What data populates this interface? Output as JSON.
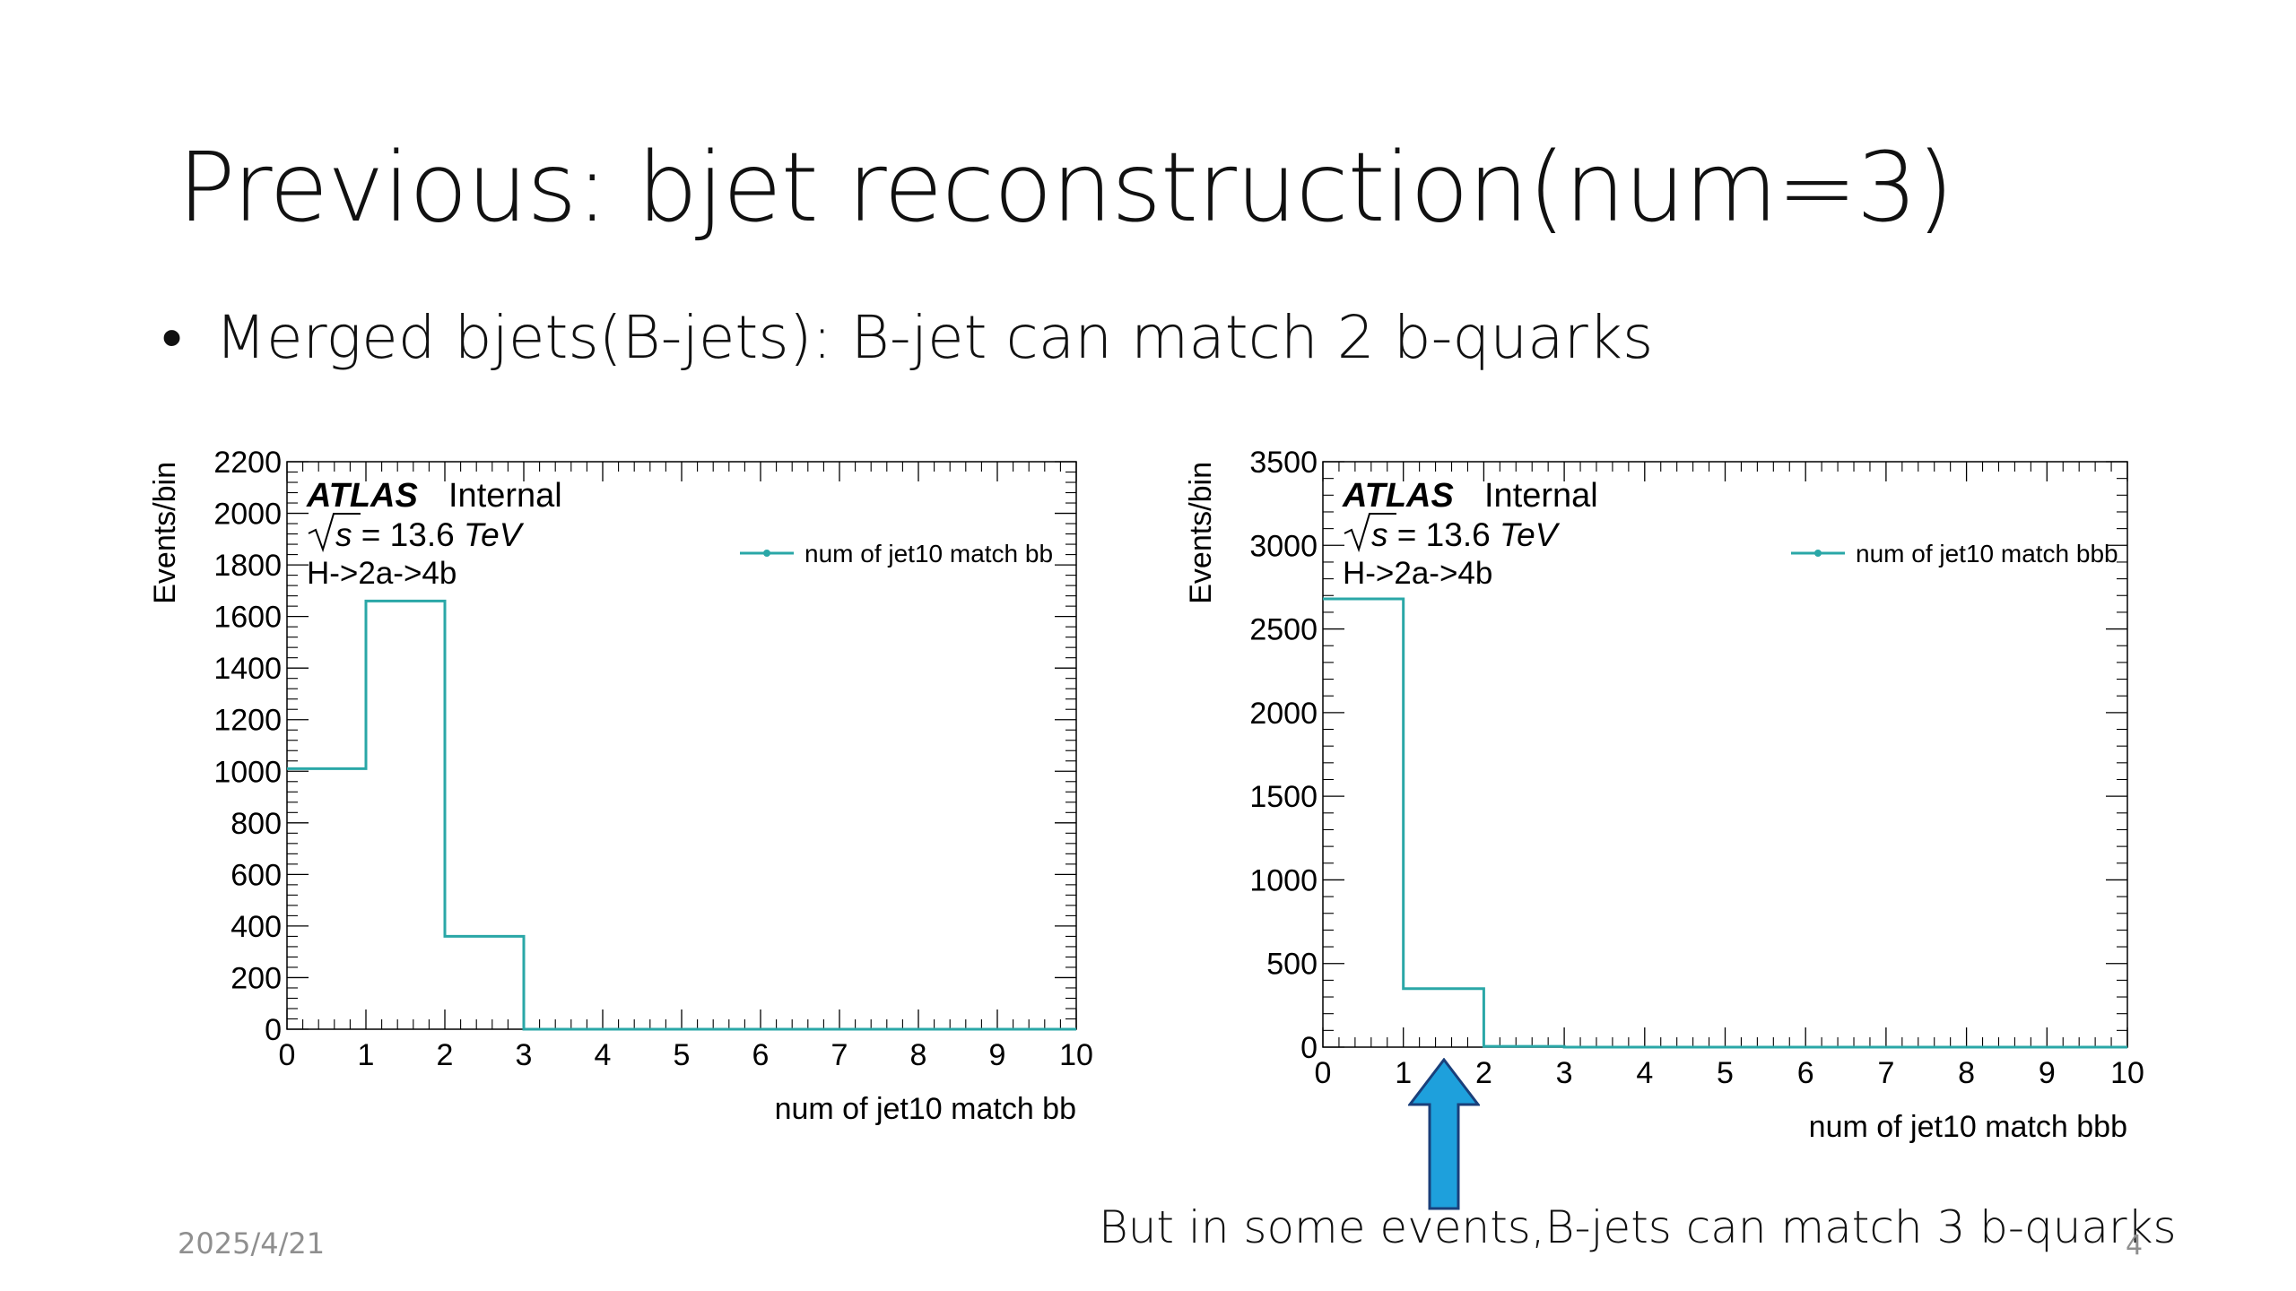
{
  "slide": {
    "title": "Previous: bjet reconstruction(num=3)",
    "bullet": "Merged bjets(B-jets): B-jet can match 2 b-quarks",
    "annotation": "But in some events,B-jets can match 3 b-quarks",
    "date": "2025/4/21",
    "page_number": "4"
  },
  "colors": {
    "series": "#2aa7a7",
    "arrow_fill": "#1ea0dc",
    "arrow_stroke": "#1a3f7a"
  },
  "chart_data": [
    {
      "type": "histogram",
      "xlabel": "num of jet10 match bb",
      "ylabel": "Events/bin",
      "xlim": [
        0,
        10
      ],
      "ylim": [
        0,
        2200
      ],
      "xticks": [
        0,
        1,
        2,
        3,
        4,
        5,
        6,
        7,
        8,
        9,
        10
      ],
      "yticks": [
        0,
        200,
        400,
        600,
        800,
        1000,
        1200,
        1400,
        1600,
        1800,
        2000,
        2200
      ],
      "bin_edges": [
        0,
        1,
        2,
        3,
        4,
        5,
        6,
        7,
        8,
        9,
        10
      ],
      "values": [
        1010,
        1660,
        360,
        0,
        0,
        0,
        0,
        0,
        0,
        0
      ],
      "legend": {
        "label": "num of jet10 match bb",
        "position": "top-right"
      },
      "labels": {
        "atlas": "ATLAS",
        "internal": "Internal",
        "energy_prefix": "s = 13.6",
        "energy_unit": "TeV",
        "process": "H->2a->4b"
      }
    },
    {
      "type": "histogram",
      "xlabel": "num of jet10 match bbb",
      "ylabel": "Events/bin",
      "xlim": [
        0,
        10
      ],
      "ylim": [
        0,
        3500
      ],
      "xticks": [
        0,
        1,
        2,
        3,
        4,
        5,
        6,
        7,
        8,
        9,
        10
      ],
      "yticks": [
        0,
        500,
        1000,
        1500,
        2000,
        2500,
        3000,
        3500
      ],
      "bin_edges": [
        0,
        1,
        2,
        3,
        4,
        5,
        6,
        7,
        8,
        9,
        10
      ],
      "values": [
        2680,
        350,
        5,
        0,
        0,
        0,
        0,
        0,
        0,
        0
      ],
      "legend": {
        "label": "num of jet10 match bbb",
        "position": "top-right"
      },
      "labels": {
        "atlas": "ATLAS",
        "internal": "Internal",
        "energy_prefix": "s = 13.6",
        "energy_unit": "TeV",
        "process": "H->2a->4b"
      }
    }
  ]
}
